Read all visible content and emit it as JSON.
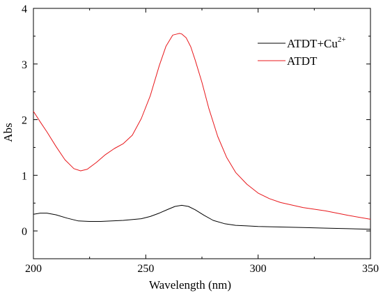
{
  "chart_data": {
    "type": "line",
    "xlabel": "Wavelength (nm)",
    "ylabel": "Abs",
    "xlim": [
      200,
      350
    ],
    "ylim": [
      -0.5,
      4
    ],
    "x_ticks": [
      "200",
      "250",
      "300",
      "350"
    ],
    "y_ticks": [
      "0",
      "1",
      "2",
      "3",
      "4"
    ],
    "grid": false,
    "legend_position": "top-right",
    "series": [
      {
        "name": "ATDT+Cu",
        "name_superscript": "2+",
        "color": "#000000",
        "x": [
          200,
          203,
          206,
          210,
          215,
          220,
          225,
          230,
          240,
          248,
          252,
          256,
          260,
          263,
          266,
          269,
          272,
          276,
          280,
          285,
          290,
          295,
          300,
          310,
          320,
          330,
          340,
          350
        ],
        "y": [
          0.3,
          0.32,
          0.32,
          0.29,
          0.23,
          0.18,
          0.17,
          0.17,
          0.19,
          0.22,
          0.26,
          0.32,
          0.39,
          0.44,
          0.46,
          0.44,
          0.38,
          0.28,
          0.19,
          0.13,
          0.1,
          0.09,
          0.08,
          0.07,
          0.06,
          0.05,
          0.04,
          0.03
        ]
      },
      {
        "name": "ATDT",
        "color": "#e8171b",
        "x": [
          200,
          203,
          206,
          210,
          214,
          218,
          221,
          224,
          228,
          232,
          236,
          240,
          244,
          248,
          252,
          256,
          259,
          262,
          264,
          265,
          266,
          268,
          270,
          272,
          275,
          278,
          282,
          286,
          290,
          295,
          300,
          305,
          310,
          320,
          330,
          340,
          350
        ],
        "y": [
          2.15,
          1.96,
          1.78,
          1.52,
          1.28,
          1.12,
          1.08,
          1.11,
          1.23,
          1.37,
          1.48,
          1.57,
          1.72,
          2.02,
          2.43,
          2.97,
          3.32,
          3.52,
          3.54,
          3.55,
          3.54,
          3.47,
          3.31,
          3.07,
          2.67,
          2.21,
          1.7,
          1.32,
          1.05,
          0.84,
          0.68,
          0.58,
          0.51,
          0.42,
          0.36,
          0.28,
          0.21
        ]
      }
    ]
  }
}
